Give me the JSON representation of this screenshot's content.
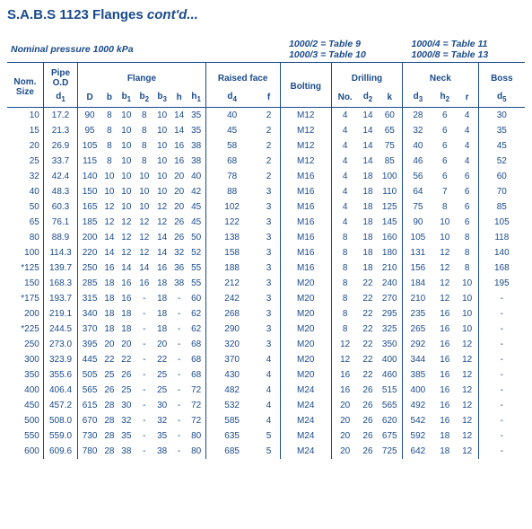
{
  "title_prefix": "S.A.B.S 1123 Flanges ",
  "title_italic": "cont'd...",
  "pressure_label": "Nominal pressure 1000 kPa",
  "ref_lines": [
    "1000/2 = Table 9",
    "1000/3 = Table 10",
    "1000/4 = Table 11",
    "1000/8 = Table 13"
  ],
  "groups": {
    "nom": "Nom.\nSize",
    "pipe": "Pipe\nO.D",
    "flange": "Flange",
    "raised": "Raised face",
    "bolting": "Bolting",
    "drilling": "Drilling",
    "neck": "Neck",
    "boss": "Boss"
  },
  "sub": [
    "d1",
    "D",
    "b",
    "b1",
    "b2",
    "b3",
    "h",
    "h1",
    "d4",
    "f",
    "",
    "No.",
    "d2",
    "k",
    "d3",
    "h2",
    "r",
    "d5"
  ],
  "columns_plain": [
    "",
    "d",
    "D",
    "b",
    "b",
    "b",
    "b",
    "h",
    "h",
    "d",
    "f",
    "",
    "No.",
    "d",
    "k",
    "d",
    "h",
    "r",
    "d"
  ],
  "columns_sub": [
    "",
    "1",
    "",
    "",
    "1",
    "2",
    "3",
    "",
    "1",
    "4",
    "",
    "",
    "",
    "2",
    "",
    "3",
    "2",
    "",
    "5"
  ],
  "rows": [
    [
      "10",
      "17.2",
      "90",
      "8",
      "10",
      "8",
      "10",
      "14",
      "35",
      "40",
      "2",
      "M12",
      "4",
      "14",
      "60",
      "28",
      "6",
      "4",
      "30"
    ],
    [
      "15",
      "21.3",
      "95",
      "8",
      "10",
      "8",
      "10",
      "14",
      "35",
      "45",
      "2",
      "M12",
      "4",
      "14",
      "65",
      "32",
      "6",
      "4",
      "35"
    ],
    [
      "20",
      "26.9",
      "105",
      "8",
      "10",
      "8",
      "10",
      "16",
      "38",
      "58",
      "2",
      "M12",
      "4",
      "14",
      "75",
      "40",
      "6",
      "4",
      "45"
    ],
    [
      "25",
      "33.7",
      "115",
      "8",
      "10",
      "8",
      "10",
      "16",
      "38",
      "68",
      "2",
      "M12",
      "4",
      "14",
      "85",
      "46",
      "6",
      "4",
      "52"
    ],
    [
      "32",
      "42.4",
      "140",
      "10",
      "10",
      "10",
      "10",
      "20",
      "40",
      "78",
      "2",
      "M16",
      "4",
      "18",
      "100",
      "56",
      "6",
      "6",
      "60"
    ],
    [
      "40",
      "48.3",
      "150",
      "10",
      "10",
      "10",
      "10",
      "20",
      "42",
      "88",
      "3",
      "M16",
      "4",
      "18",
      "110",
      "64",
      "7",
      "6",
      "70"
    ],
    [
      "50",
      "60.3",
      "165",
      "12",
      "10",
      "10",
      "12",
      "20",
      "45",
      "102",
      "3",
      "M16",
      "4",
      "18",
      "125",
      "75",
      "8",
      "6",
      "85"
    ],
    [
      "65",
      "76.1",
      "185",
      "12",
      "12",
      "12",
      "12",
      "26",
      "45",
      "122",
      "3",
      "M16",
      "4",
      "18",
      "145",
      "90",
      "10",
      "6",
      "105"
    ],
    [
      "80",
      "88.9",
      "200",
      "14",
      "12",
      "12",
      "14",
      "26",
      "50",
      "138",
      "3",
      "M16",
      "8",
      "18",
      "160",
      "105",
      "10",
      "8",
      "118"
    ],
    [
      "100",
      "114.3",
      "220",
      "14",
      "12",
      "12",
      "14",
      "32",
      "52",
      "158",
      "3",
      "M16",
      "8",
      "18",
      "180",
      "131",
      "12",
      "8",
      "140"
    ],
    [
      "*125",
      "139.7",
      "250",
      "16",
      "14",
      "14",
      "16",
      "36",
      "55",
      "188",
      "3",
      "M16",
      "8",
      "18",
      "210",
      "156",
      "12",
      "8",
      "168"
    ],
    [
      "150",
      "168.3",
      "285",
      "18",
      "16",
      "16",
      "18",
      "38",
      "55",
      "212",
      "3",
      "M20",
      "8",
      "22",
      "240",
      "184",
      "12",
      "10",
      "195"
    ],
    [
      "*175",
      "193.7",
      "315",
      "18",
      "16",
      "-",
      "18",
      "-",
      "60",
      "242",
      "3",
      "M20",
      "8",
      "22",
      "270",
      "210",
      "12",
      "10",
      "-"
    ],
    [
      "200",
      "219.1",
      "340",
      "18",
      "18",
      "-",
      "18",
      "-",
      "62",
      "268",
      "3",
      "M20",
      "8",
      "22",
      "295",
      "235",
      "16",
      "10",
      "-"
    ],
    [
      "*225",
      "244.5",
      "370",
      "18",
      "18",
      "-",
      "18",
      "-",
      "62",
      "290",
      "3",
      "M20",
      "8",
      "22",
      "325",
      "265",
      "16",
      "10",
      "-"
    ],
    [
      "250",
      "273.0",
      "395",
      "20",
      "20",
      "-",
      "20",
      "-",
      "68",
      "320",
      "3",
      "M20",
      "12",
      "22",
      "350",
      "292",
      "16",
      "12",
      "-"
    ],
    [
      "300",
      "323.9",
      "445",
      "22",
      "22",
      "-",
      "22",
      "-",
      "68",
      "370",
      "4",
      "M20",
      "12",
      "22",
      "400",
      "344",
      "16",
      "12",
      "-"
    ],
    [
      "350",
      "355.6",
      "505",
      "25",
      "26",
      "-",
      "25",
      "-",
      "68",
      "430",
      "4",
      "M20",
      "16",
      "22",
      "460",
      "385",
      "16",
      "12",
      "-"
    ],
    [
      "400",
      "406.4",
      "565",
      "26",
      "25",
      "-",
      "25",
      "-",
      "72",
      "482",
      "4",
      "M24",
      "16",
      "26",
      "515",
      "400",
      "16",
      "12",
      "-"
    ],
    [
      "450",
      "457.2",
      "615",
      "28",
      "30",
      "-",
      "30",
      "-",
      "72",
      "532",
      "4",
      "M24",
      "20",
      "26",
      "565",
      "492",
      "16",
      "12",
      "-"
    ],
    [
      "500",
      "508.0",
      "670",
      "28",
      "32",
      "-",
      "32",
      "-",
      "72",
      "585",
      "4",
      "M24",
      "20",
      "26",
      "620",
      "542",
      "16",
      "12",
      "-"
    ],
    [
      "550",
      "559.0",
      "730",
      "28",
      "35",
      "-",
      "35",
      "-",
      "80",
      "635",
      "5",
      "M24",
      "20",
      "26",
      "675",
      "592",
      "18",
      "12",
      "-"
    ],
    [
      "600",
      "609.6",
      "780",
      "28",
      "38",
      "-",
      "38",
      "-",
      "80",
      "685",
      "5",
      "M24",
      "20",
      "26",
      "725",
      "642",
      "18",
      "12",
      "-"
    ]
  ],
  "colors": {
    "text": "#1a4b8c",
    "border": "#1a4b8c",
    "background": "#ffffff"
  }
}
